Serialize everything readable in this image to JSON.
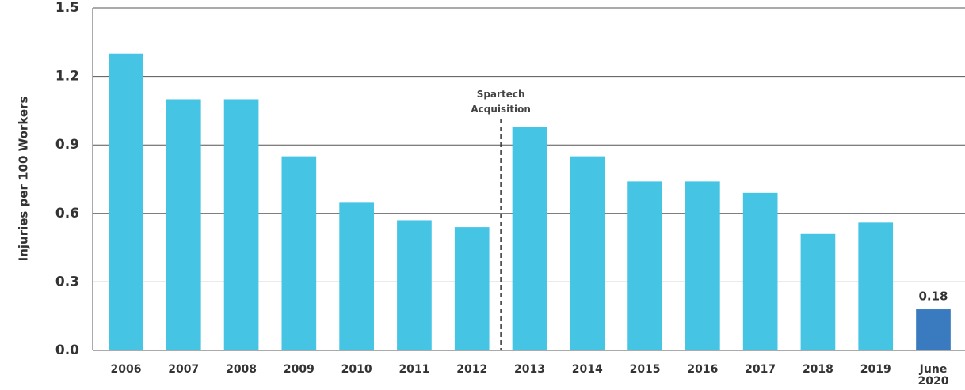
{
  "chart_data": {
    "type": "bar",
    "y_label": "Injuries per 100 Workers",
    "categories": [
      "2006",
      "2007",
      "2008",
      "2009",
      "2010",
      "2011",
      "2012",
      "2013",
      "2014",
      "2015",
      "2016",
      "2017",
      "2018",
      "2019",
      "June 2020"
    ],
    "values": [
      1.3,
      1.1,
      1.1,
      0.85,
      0.65,
      0.57,
      0.54,
      0.98,
      0.85,
      0.74,
      0.74,
      0.69,
      0.51,
      0.56,
      0.18
    ],
    "value_labels": [
      null,
      null,
      null,
      null,
      null,
      null,
      null,
      null,
      null,
      null,
      null,
      null,
      null,
      null,
      "0.18"
    ],
    "colors": [
      "#45c4e4",
      "#45c4e4",
      "#45c4e4",
      "#45c4e4",
      "#45c4e4",
      "#45c4e4",
      "#45c4e4",
      "#45c4e4",
      "#45c4e4",
      "#45c4e4",
      "#45c4e4",
      "#45c4e4",
      "#45c4e4",
      "#45c4e4",
      "#3a7bbf"
    ],
    "annotation": "Spartech Acquisition",
    "ylim": [
      0,
      1.5
    ],
    "yticks": [
      {
        "value": 0,
        "label": "0.0"
      },
      0.3,
      0.6,
      0.9,
      1.2,
      1.5
    ],
    "grid": true
  }
}
